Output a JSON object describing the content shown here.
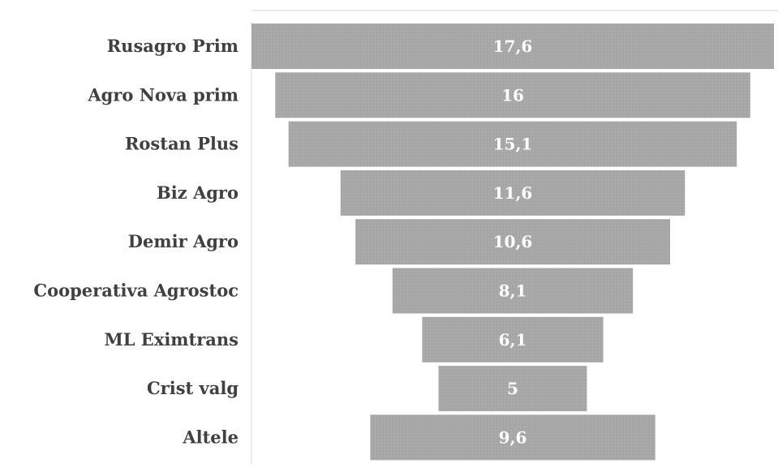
{
  "chart_data": {
    "type": "bar",
    "orientation": "horizontal",
    "style": "funnel",
    "title": "",
    "xlabel": "",
    "ylabel": "",
    "categories": [
      "Rusagro Prim",
      "Agro Nova prim",
      "Rostan Plus",
      "Biz Agro",
      "Demir Agro",
      "Cooperativa Agrostoc",
      "ML Eximtrans",
      "Crist valg",
      "Altele"
    ],
    "values": [
      17.6,
      16,
      15.1,
      11.6,
      10.6,
      8.1,
      6.1,
      5,
      9.6
    ],
    "value_labels": [
      "17,6",
      "16",
      "15,1",
      "11,6",
      "10,6",
      "8,1",
      "6,1",
      "5",
      "9,6"
    ],
    "bar_color": "#a6a6a6",
    "label_color": "#404040",
    "value_label_color": "#ffffff",
    "grid": false,
    "legend": "none"
  }
}
